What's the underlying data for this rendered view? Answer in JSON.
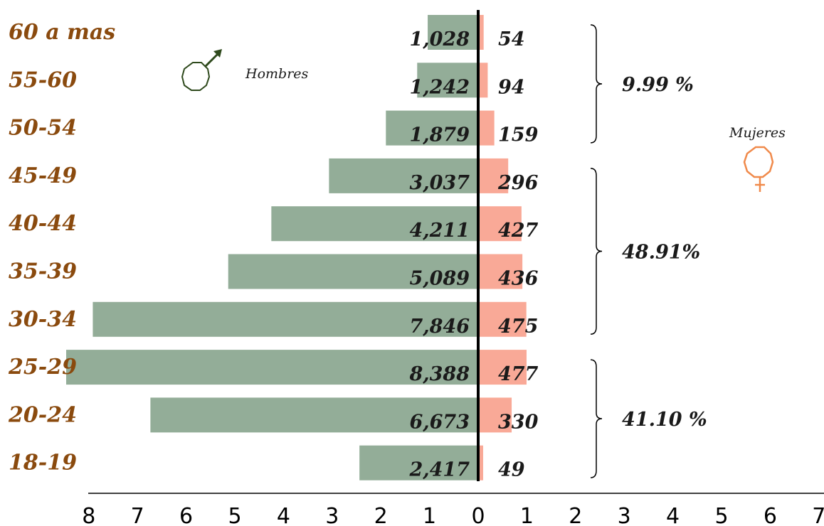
{
  "chart_data": {
    "type": "bar",
    "orientation": "horizontal",
    "categories": [
      "60 a mas",
      "55-60",
      "50-54",
      "45-49",
      "40-44",
      "35-39",
      "30-34",
      "25-29",
      "20-24",
      "18-19"
    ],
    "series": [
      {
        "name": "Hombres",
        "values": [
          1028,
          1242,
          1879,
          3037,
          4211,
          5089,
          7846,
          8388,
          6673,
          2417
        ],
        "labels": [
          "1,028",
          "1,242",
          "1,879",
          "3,037",
          "4,211",
          "5,089",
          "7,846",
          "8,388",
          "6,673",
          "2,417"
        ],
        "color": "#93ad98"
      },
      {
        "name": "Mujeres",
        "values": [
          54,
          94,
          159,
          296,
          427,
          436,
          475,
          477,
          330,
          49
        ],
        "labels": [
          "54",
          "94",
          "159",
          "296",
          "427",
          "436",
          "475",
          "477",
          "330",
          "49"
        ],
        "color": "#f9a997"
      }
    ],
    "xticks_left": [
      "8",
      "7",
      "6",
      "5",
      "4",
      "3",
      "2",
      "1"
    ],
    "xtick_zero": "0",
    "xticks_right": [
      "1",
      "2",
      "3",
      "4",
      "5",
      "6",
      "7"
    ],
    "groups": [
      {
        "label": "9.99 %",
        "from": 0,
        "to": 2
      },
      {
        "label": "48.91%",
        "from": 3,
        "to": 6
      },
      {
        "label": "41.10 %",
        "from": 7,
        "to": 9
      }
    ],
    "male_label": "Hombres",
    "female_label": "Mujeres",
    "male_color": "#2f4a1d",
    "female_color": "#f08a4b",
    "age_label_color": "#8a4a0e"
  }
}
